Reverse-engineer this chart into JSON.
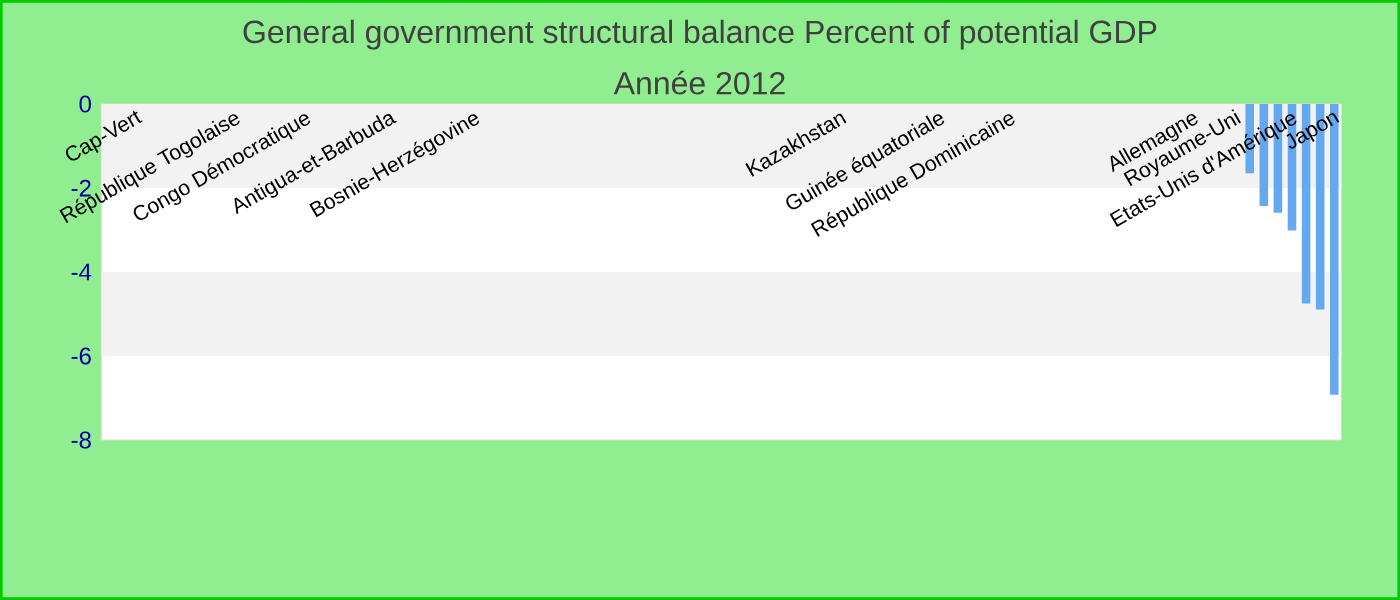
{
  "chart_data": {
    "type": "bar",
    "title": "General government structural balance  Percent of potential GDP",
    "subtitle": "Année 2012",
    "categories": [
      null,
      null,
      "Cap-Vert",
      null,
      null,
      null,
      null,
      null,
      null,
      "République Togolaise",
      null,
      null,
      null,
      null,
      "Congo Démocratique",
      null,
      null,
      null,
      null,
      null,
      "Antigua-et-Barbuda",
      null,
      null,
      null,
      null,
      null,
      "Bosnie-Herzégovine",
      null,
      null,
      null,
      null,
      null,
      null,
      null,
      null,
      null,
      null,
      null,
      null,
      null,
      null,
      null,
      null,
      null,
      null,
      null,
      null,
      null,
      null,
      null,
      null,
      null,
      "Kazakhstan",
      null,
      null,
      null,
      null,
      null,
      null,
      "Guinée équatoriale",
      null,
      null,
      null,
      null,
      "République Dominicaine",
      null,
      null,
      null,
      null,
      null,
      null,
      null,
      null,
      null,
      null,
      null,
      null,
      "Allemagne",
      null,
      null,
      "Royaume-Uni",
      null,
      null,
      null,
      "Etats-Unis d'Amérique",
      null,
      null,
      "Japon"
    ],
    "values": [
      null,
      null,
      null,
      null,
      null,
      null,
      null,
      null,
      null,
      null,
      null,
      null,
      null,
      null,
      null,
      null,
      null,
      null,
      null,
      null,
      null,
      null,
      null,
      null,
      null,
      null,
      null,
      null,
      null,
      null,
      null,
      null,
      null,
      null,
      null,
      null,
      null,
      null,
      null,
      null,
      null,
      null,
      null,
      null,
      null,
      null,
      null,
      null,
      null,
      null,
      null,
      null,
      null,
      null,
      null,
      null,
      null,
      null,
      null,
      null,
      null,
      null,
      null,
      null,
      null,
      null,
      null,
      null,
      null,
      null,
      null,
      null,
      null,
      null,
      null,
      null,
      null,
      null,
      null,
      null,
      null,
      -1.65,
      -2.43,
      -2.59,
      -3.01,
      -4.75,
      -4.89,
      -6.92
    ],
    "color": "#64a8f0",
    "ylim": [
      -8,
      0
    ],
    "yticks": [
      -8,
      -6,
      -4,
      -2,
      0
    ],
    "bands": [
      {
        "axis": "y",
        "from": -2,
        "to": 0,
        "color": "#f2f2f2"
      },
      {
        "axis": "y",
        "from": -6,
        "to": -4,
        "color": "#f2f2f2"
      }
    ]
  }
}
